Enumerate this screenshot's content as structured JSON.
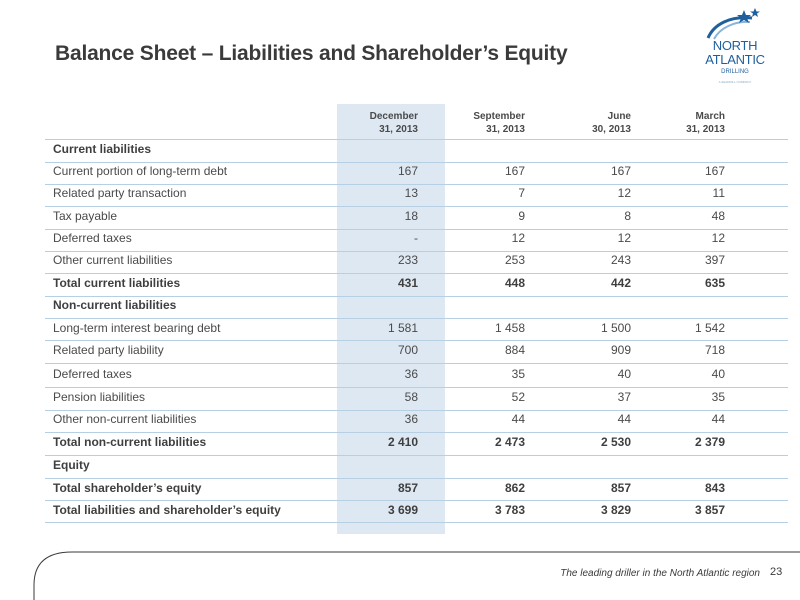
{
  "title": "Balance Sheet – Liabilities and Shareholder’s Equity",
  "logo": {
    "line1": "NORTH",
    "line2": "ATLANTIC",
    "line3": "DRILLING",
    "tagline": "A SEADRILL COMPANY"
  },
  "columns": [
    {
      "line1": "December",
      "line2": "31, 2013"
    },
    {
      "line1": "September",
      "line2": "31, 2013"
    },
    {
      "line1": "June",
      "line2": "30, 2013"
    },
    {
      "line1": "March",
      "line2": "31, 2013"
    }
  ],
  "rows": [
    {
      "label": "Current liabilities",
      "bold": true,
      "values": [
        "",
        "",
        "",
        ""
      ]
    },
    {
      "label": "Current portion of long-term debt",
      "bold": false,
      "values": [
        "167",
        "167",
        "167",
        "167"
      ]
    },
    {
      "label": "Related party transaction",
      "bold": false,
      "values": [
        "13",
        "7",
        "12",
        "11"
      ]
    },
    {
      "label": "Tax payable",
      "bold": false,
      "values": [
        "18",
        "9",
        "8",
        "48"
      ]
    },
    {
      "label": "Deferred taxes",
      "bold": false,
      "values": [
        "-",
        "12",
        "12",
        "12"
      ]
    },
    {
      "label": "Other current liabilities",
      "bold": false,
      "values": [
        "233",
        "253",
        "243",
        "397"
      ]
    },
    {
      "label": "Total current liabilities",
      "bold": true,
      "values": [
        "431",
        "448",
        "442",
        "635"
      ]
    },
    {
      "label": "Non-current liabilities",
      "bold": true,
      "values": [
        "",
        "",
        "",
        ""
      ]
    },
    {
      "label": "Long-term interest bearing debt",
      "bold": false,
      "values": [
        "1 581",
        "1 458",
        "1 500",
        "1 542"
      ]
    },
    {
      "label": "Related party liability",
      "bold": false,
      "values": [
        "700",
        "884",
        "909",
        "718"
      ]
    },
    {
      "label": "Deferred taxes",
      "bold": false,
      "values": [
        "36",
        "35",
        "40",
        "40"
      ]
    },
    {
      "label": "Pension liabilities",
      "bold": false,
      "values": [
        "58",
        "52",
        "37",
        "35"
      ]
    },
    {
      "label": "Other non-current liabilities",
      "bold": false,
      "values": [
        "36",
        "44",
        "44",
        "44"
      ]
    },
    {
      "label": "Total non-current liabilities",
      "bold": true,
      "values": [
        "2 410",
        "2 473",
        "2 530",
        "2 379"
      ]
    },
    {
      "label": "Equity",
      "bold": true,
      "values": [
        "",
        "",
        "",
        ""
      ]
    },
    {
      "label": "Total shareholder’s equity",
      "bold": true,
      "values": [
        "857",
        "862",
        "857",
        "843"
      ]
    },
    {
      "label": "Total liabilities and shareholder’s equity",
      "bold": true,
      "values": [
        "3 699",
        "3 783",
        "3 829",
        "3 857"
      ]
    }
  ],
  "footer": {
    "tagline": "The leading driller in the North Atlantic region",
    "page_number": "23"
  },
  "colors": {
    "shade": "#dde8f2",
    "rule": "#b7cfe3",
    "brand": "#1f5f9e"
  }
}
